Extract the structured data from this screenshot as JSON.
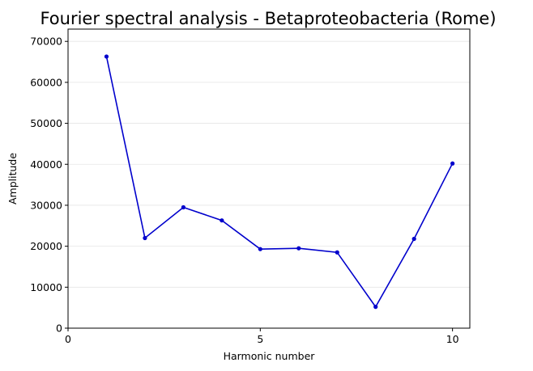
{
  "chart_data": {
    "type": "line",
    "title": "Fourier spectral analysis - Betaproteobacteria (Rome)",
    "xlabel": "Harmonic number",
    "ylabel": "Amplitude",
    "xlim": [
      0,
      10.45
    ],
    "ylim": [
      0,
      73000
    ],
    "xticks": [
      0,
      5,
      10
    ],
    "yticks": [
      0,
      10000,
      20000,
      30000,
      40000,
      50000,
      60000,
      70000
    ],
    "grid": "horizontal",
    "series": [
      {
        "color": "#0000cc",
        "x": [
          1,
          2,
          3,
          4,
          5,
          6,
          7,
          8,
          9,
          10
        ],
        "y": [
          66300,
          22000,
          29500,
          26300,
          19300,
          19500,
          18500,
          5200,
          21800,
          40200
        ]
      }
    ]
  }
}
